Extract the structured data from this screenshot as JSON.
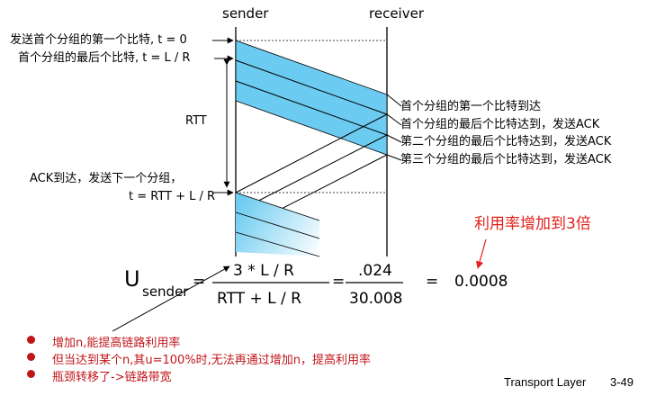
{
  "header": {
    "sender": "sender",
    "receiver": "receiver"
  },
  "left_labels": {
    "first_bit_sent": "发送首个分组的第一个比特, t = 0",
    "last_bit_sent": "首个分组的最后个比特, t = L / R",
    "rtt": "RTT",
    "ack_arrives_line1": "ACK到达，发送下一个分组，",
    "ack_arrives_line2": "t = RTT + L / R"
  },
  "right_labels": {
    "first_bit_arrives": "首个分组的第一个比特到达",
    "last_bit_arrives": "首个分组的最后个比特达到，发送ACK",
    "second_last_bit": "第二个分组的最后个比特达到，发送ACK",
    "third_last_bit": "第三个分组的最后个比特达到，发送ACK"
  },
  "annotation": "利用率增加到3倍",
  "formula": {
    "u": "U",
    "sub": "sender",
    "eq1": "=",
    "numerator": "3 * L / R",
    "denominator": "RTT + L / R",
    "eq2": "=",
    "frac_num": ".024",
    "frac_den": "30.008",
    "eq3": "=",
    "result": "0.0008"
  },
  "bullets": [
    "增加n,能提高链路利用率",
    "但当达到某个n,其u=100%时,无法再通过增加n，提高利用率",
    "瓶颈转移了->链路带宽"
  ],
  "footer": {
    "topic": "Transport Layer",
    "page": "3-49"
  },
  "colors": {
    "packet_band": "#6ccbf0",
    "band_fade": "#ffffff",
    "annotation": "#e3201b",
    "bullet": "#c0151a"
  }
}
